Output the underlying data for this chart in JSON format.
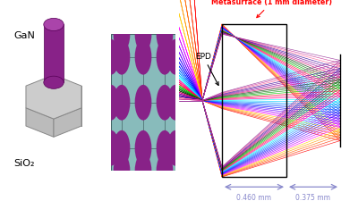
{
  "background_color": "#ffffff",
  "gan_color": "#882288",
  "gan_top_color": "#aa44aa",
  "sio2_color": "#cccccc",
  "sio2_edge_color": "#888888",
  "grid_bg_color": "#88bbbb",
  "dot_color": "#882288",
  "epd_label": "EPD",
  "metasurface_label": "Metasurface (1 mm diameter)",
  "dist1_label": "0.460 mm",
  "dist2_label": "0.375 mm",
  "gan_label": "GaN",
  "sio2_label": "SiO₂",
  "ray_colors": [
    "#ff0000",
    "#ff3300",
    "#ff6600",
    "#ff9900",
    "#ffcc00",
    "#ff00ff",
    "#cc00ff",
    "#9900ff",
    "#6600ff",
    "#3300ff",
    "#0000ff",
    "#0033ff",
    "#0066ff",
    "#0099ff",
    "#00ccff",
    "#00ffff",
    "#ff0099",
    "#ff0066",
    "#ff0033",
    "#00cc00",
    "#009900",
    "#006600",
    "#003300",
    "#cc0066",
    "#990099",
    "#660099",
    "#330099",
    "#ff6699",
    "#cc3399",
    "#993399"
  ]
}
